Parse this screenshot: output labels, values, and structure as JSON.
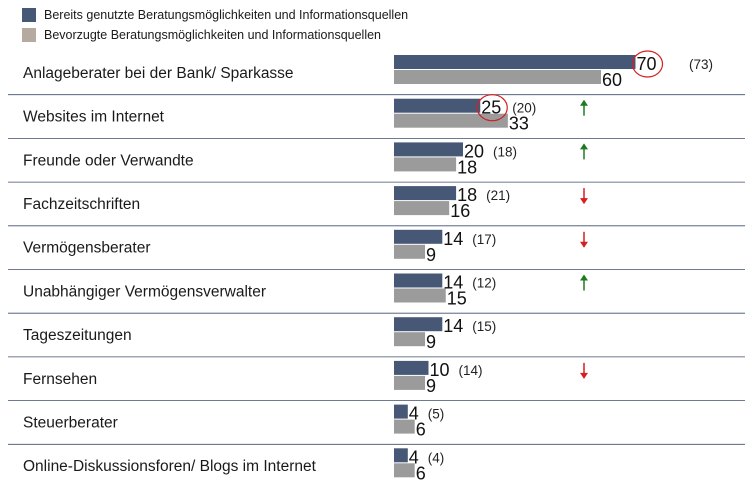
{
  "legend": [
    {
      "label": "Bereits genutzte Beratungsmöglichkeiten und Informationsquellen",
      "color": "#475877"
    },
    {
      "label": "Bevorzugte Beratungsmöglichkeiten und Informationsquellen",
      "color": "#b4aa9f"
    }
  ],
  "colors": {
    "used": "#475877",
    "preferred": "#9b9b9b",
    "arrow_up": "#1f7a1f",
    "arrow_down": "#d42020",
    "highlight": "#d42020",
    "separator": "#3f4f6f"
  },
  "chart_data": {
    "type": "bar",
    "orientation": "horizontal",
    "categories": [
      "Anlageberater bei der Bank/ Sparkasse",
      "Websites im Internet",
      "Freunde oder Verwandte",
      "Fachzeitschriften",
      "Vermögensberater",
      "Unabhängiger Vermögensverwalter",
      "Tageszeitungen",
      "Fernsehen",
      "Steuerberater",
      "Online-Diskussionsforen/ Blogs im Internet"
    ],
    "series": [
      {
        "name": "Bereits genutzte Beratungsmöglichkeiten und Informationsquellen",
        "values": [
          70,
          25,
          20,
          18,
          14,
          14,
          14,
          10,
          4,
          4
        ]
      },
      {
        "name": "Bevorzugte Beratungsmöglichkeiten und Informationsquellen",
        "values": [
          60,
          33,
          18,
          16,
          9,
          15,
          9,
          9,
          6,
          6
        ]
      }
    ],
    "previous_values": [
      "(73)",
      "(20)",
      "(18)",
      "(21)",
      "(17)",
      "(12)",
      "(15)",
      "(14)",
      "(5)",
      "(4)"
    ],
    "trend": [
      "",
      "up",
      "up",
      "down",
      "down",
      "up",
      "",
      "down",
      "",
      ""
    ],
    "highlighted": [
      true,
      true,
      false,
      false,
      false,
      false,
      false,
      false,
      false,
      false
    ],
    "xlim": [
      0,
      70
    ]
  }
}
